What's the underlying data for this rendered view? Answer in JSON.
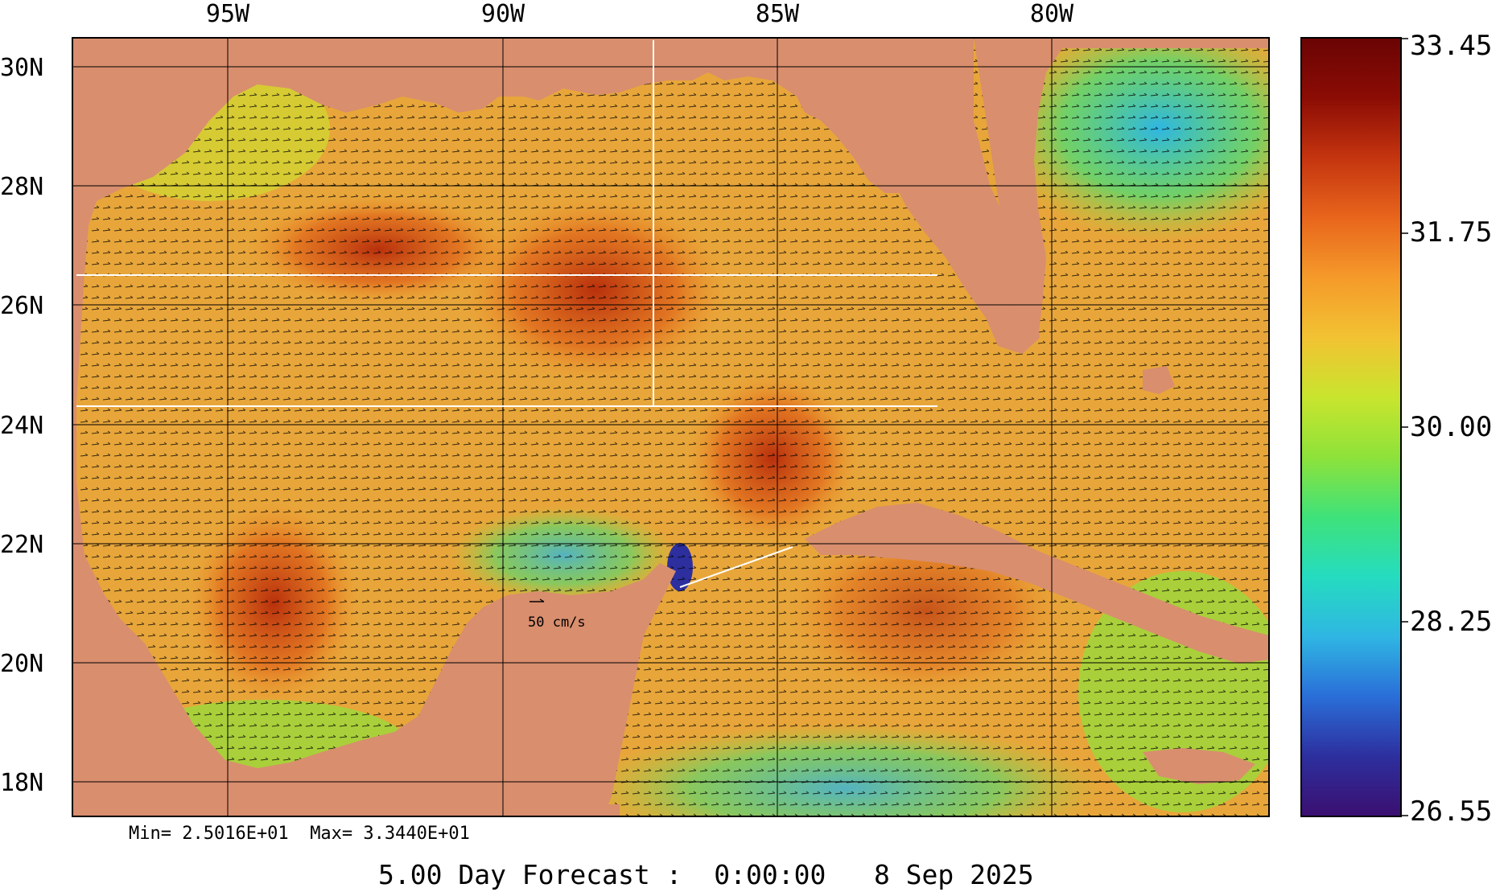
{
  "map": {
    "lon_labels": [
      "95W",
      "90W",
      "85W",
      "80W"
    ],
    "lat_labels": [
      "30N",
      "28N",
      "26N",
      "24N",
      "22N",
      "20N",
      "18N"
    ],
    "scale_label": "50 cm/s",
    "land_color": "#d98e6e",
    "grid_color": "#000000"
  },
  "colorbar": {
    "tick_labels": [
      "33.45",
      "31.75",
      "30.00",
      "28.25",
      "26.55"
    ],
    "stops": [
      "#3b0f70",
      "#2d2f9e",
      "#2a6ed8",
      "#2fb6e3",
      "#25dcc0",
      "#3fe27a",
      "#8ee23a",
      "#c9e52e",
      "#f2c232",
      "#f59a2a",
      "#e8651c",
      "#c4340f",
      "#8b0c05",
      "#6a0404"
    ]
  },
  "stats": {
    "min_text": "Min= 2.5016E+01",
    "max_text": "Max= 3.3440E+01"
  },
  "footer": {
    "forecast_label": "5.00 Day Forecast :",
    "time": "0:00:00",
    "date": "8 Sep 2025"
  }
}
